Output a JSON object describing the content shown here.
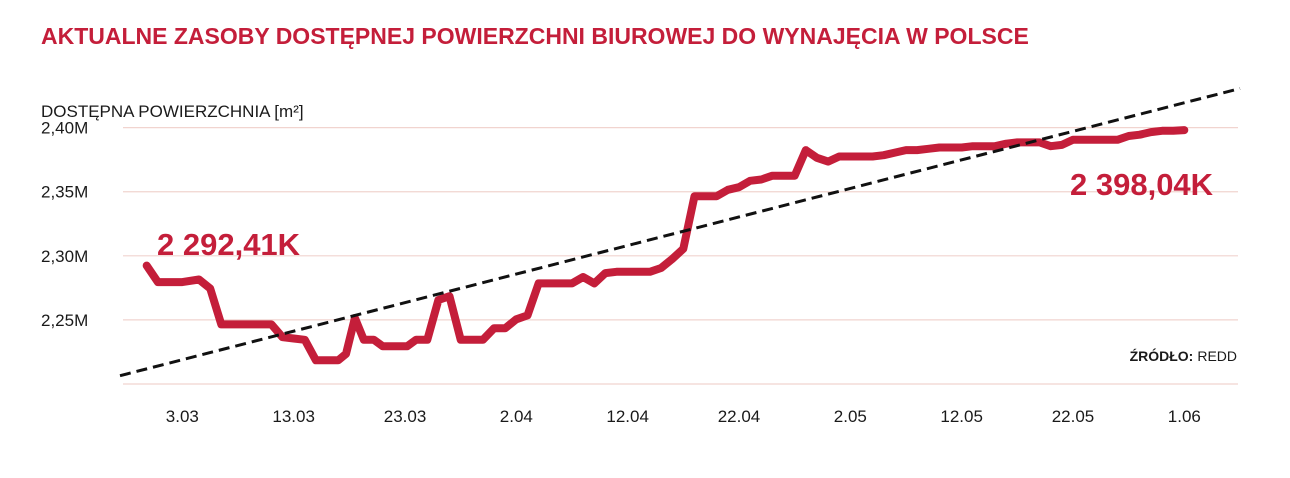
{
  "chart_data": {
    "type": "line",
    "title": "AKTUALNE ZASOBY DOSTĘPNEJ POWIERZCHNI BIUROWEJ DO WYNAJĘCIA W POLSCE",
    "ylabel": "DOSTĘPNA POWIERZCHNIA [m²]",
    "xlabel": "",
    "ylim": [
      2.2,
      2.42
    ],
    "yticks": [
      {
        "value": 2.25,
        "label": "2,25M"
      },
      {
        "value": 2.3,
        "label": "2,30M"
      },
      {
        "value": 2.35,
        "label": "2,35M"
      },
      {
        "value": 2.4,
        "label": "2,40M"
      }
    ],
    "xlim": [
      -5.6,
      95
    ],
    "xticks": [
      {
        "value": 0,
        "label": "3.03"
      },
      {
        "value": 10,
        "label": "13.03"
      },
      {
        "value": 20,
        "label": "23.03"
      },
      {
        "value": 30,
        "label": "2.04"
      },
      {
        "value": 40,
        "label": "12.04"
      },
      {
        "value": 50,
        "label": "22.04"
      },
      {
        "value": 60,
        "label": "2.05"
      },
      {
        "value": 70,
        "label": "12.05"
      },
      {
        "value": 80,
        "label": "22.05"
      },
      {
        "value": 90,
        "label": "1.06"
      }
    ],
    "grid": true,
    "series": [
      {
        "name": "",
        "color": "#c41e3a",
        "x": [
          -3.2,
          -2.2,
          0,
          1.5,
          2.5,
          3.5,
          5.5,
          7,
          8,
          9,
          10,
          11,
          12,
          13,
          14,
          14.7,
          15.5,
          16.3,
          17.2,
          18,
          19,
          20.2,
          21,
          22,
          23,
          24,
          25,
          26,
          27,
          28,
          29,
          30,
          31,
          32,
          33,
          34,
          35,
          36,
          37,
          38,
          39,
          40,
          41,
          42,
          43,
          44,
          45,
          46,
          47,
          48,
          49,
          50,
          51,
          52,
          53,
          54,
          55,
          56,
          57,
          58,
          59,
          60,
          61,
          62,
          63,
          64,
          65,
          66,
          67,
          68,
          69,
          70,
          71,
          72,
          73,
          74,
          75,
          76,
          77,
          78,
          79,
          80,
          81,
          82,
          83,
          84,
          85,
          86,
          87,
          88,
          89,
          90
        ],
        "y": [
          2.2924,
          2.2795,
          2.2795,
          2.2815,
          2.2745,
          2.2465,
          2.2465,
          2.2465,
          2.2465,
          2.2365,
          2.2355,
          2.2345,
          2.2185,
          2.2185,
          2.2185,
          2.2235,
          2.2515,
          2.2345,
          2.2345,
          2.2295,
          2.2295,
          2.2295,
          2.2345,
          2.2345,
          2.2655,
          2.2685,
          2.2345,
          2.2345,
          2.2345,
          2.2435,
          2.2435,
          2.2505,
          2.2535,
          2.2785,
          2.2785,
          2.2785,
          2.2785,
          2.2835,
          2.2785,
          2.2865,
          2.2875,
          2.2875,
          2.2875,
          2.2875,
          2.2905,
          2.2975,
          2.3055,
          2.3465,
          2.3465,
          2.3465,
          2.3515,
          2.3535,
          2.3585,
          2.3595,
          2.3625,
          2.3625,
          2.3625,
          2.3825,
          2.3765,
          2.3735,
          2.3775,
          2.3775,
          2.3775,
          2.3775,
          2.3785,
          2.3805,
          2.3825,
          2.3825,
          2.3835,
          2.3845,
          2.3845,
          2.3845,
          2.3855,
          2.3855,
          2.3855,
          2.3875,
          2.3885,
          2.3885,
          2.3885,
          2.3855,
          2.3865,
          2.3905,
          2.3905,
          2.3905,
          2.3905,
          2.3905,
          2.3935,
          2.3945,
          2.3965,
          2.3975,
          2.3975,
          2.39804
        ]
      },
      {
        "name": "",
        "style": "dashed",
        "color": "#111111",
        "x": [
          -5.6,
          95
        ],
        "y": [
          2.2065,
          2.4305
        ]
      }
    ],
    "annotations": {
      "start_label": "2 292,41K",
      "end_label": "2 398,04K"
    }
  },
  "source": {
    "label": "ŹRÓDŁO:",
    "value": "REDD"
  },
  "colors": {
    "accent": "#c41e3a",
    "grid": "#f1d4cf",
    "trend": "#111111",
    "text": "#1a1a1a"
  }
}
